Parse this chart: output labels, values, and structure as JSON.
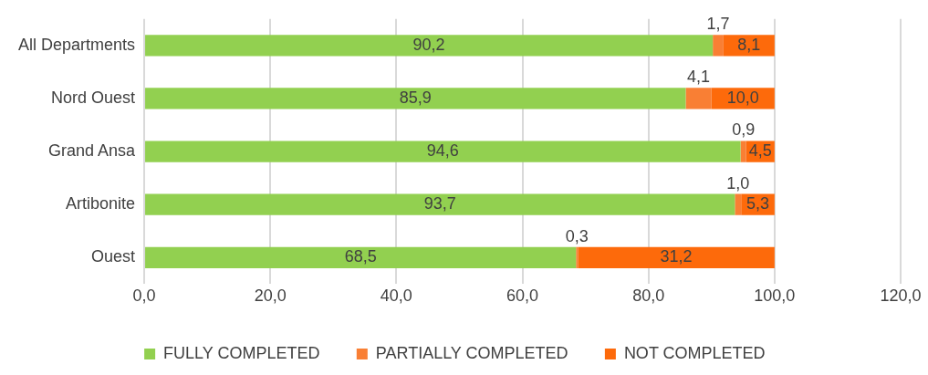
{
  "chart_data": {
    "type": "bar",
    "orientation": "horizontal",
    "stacked": true,
    "categories": [
      "All Departments",
      "Nord Ouest",
      "Grand Ansa",
      "Artibonite",
      "Ouest"
    ],
    "series": [
      {
        "name": "FULLY COMPLETED",
        "color": "#92d050",
        "values": [
          90.2,
          85.9,
          94.6,
          93.7,
          68.5
        ],
        "value_labels": [
          "90,2",
          "85,9",
          "94,6",
          "93,7",
          "68,5"
        ]
      },
      {
        "name": "PARTIALLY COMPLETED",
        "color": "#f97f34",
        "values": [
          1.7,
          4.1,
          0.9,
          1.0,
          0.3
        ],
        "value_labels": [
          "1,7",
          "4,1",
          "0,9",
          "1,0",
          "0,3"
        ]
      },
      {
        "name": "NOT COMPLETED",
        "color": "#fd6a0b",
        "values": [
          8.1,
          10.0,
          4.5,
          5.3,
          31.2
        ],
        "value_labels": [
          "8,1",
          "10,0",
          "4,5",
          "5,3",
          "31,2"
        ]
      }
    ],
    "xlim": [
      0,
      120
    ],
    "xticks": [
      {
        "value": 0,
        "label": "0,0"
      },
      {
        "value": 20,
        "label": "20,0"
      },
      {
        "value": 40,
        "label": "40,0"
      },
      {
        "value": 60,
        "label": "60,0"
      },
      {
        "value": 80,
        "label": "80,0"
      },
      {
        "value": 100,
        "label": "100,0"
      },
      {
        "value": 120,
        "label": "120,0"
      }
    ],
    "grid": "x",
    "legend": "bottom"
  }
}
